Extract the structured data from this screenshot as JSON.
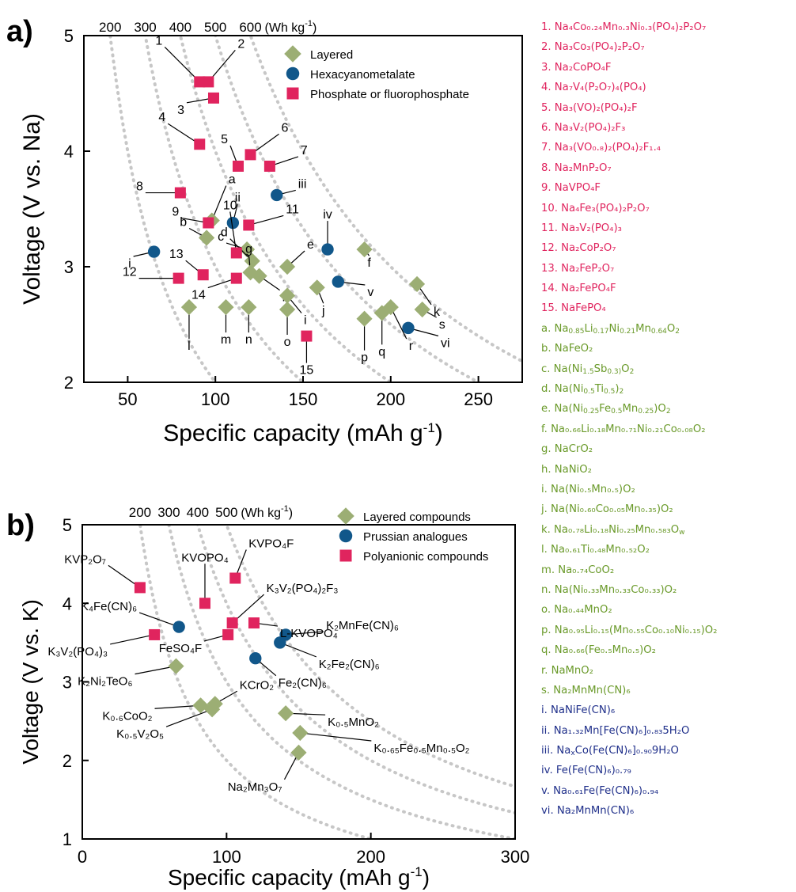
{
  "chart_data": [
    {
      "panel": "a)",
      "type": "scatter",
      "xlabel": "Specific capacity  (mAh g⁻¹)",
      "ylabel": "Voltage (V vs. Na)",
      "xlim": [
        25,
        275
      ],
      "ylim": [
        2,
        5
      ],
      "xticks": [
        "50",
        "100",
        "150",
        "200",
        "250"
      ],
      "yticks": [
        "2",
        "3",
        "4",
        "5"
      ],
      "energy_axis": {
        "labels": [
          "200",
          "300",
          "400",
          "500",
          "600"
        ],
        "unit": "(Wh kg⁻¹)",
        "values": [
          200,
          300,
          400,
          500,
          600
        ]
      },
      "legend_position": "top-right",
      "series": [
        {
          "name": "Layered",
          "marker": "diamond",
          "color": "#9cae74",
          "points": [
            {
              "label": "a",
              "x": 98,
              "y": 3.4
            },
            {
              "label": "b",
              "x": 95,
              "y": 3.25
            },
            {
              "label": "c",
              "x": 118,
              "y": 3.15
            },
            {
              "label": "d",
              "x": 121,
              "y": 3.05
            },
            {
              "label": "e",
              "x": 141,
              "y": 3.0
            },
            {
              "label": "f",
              "x": 185,
              "y": 3.15
            },
            {
              "label": "g",
              "x": 120,
              "y": 2.95
            },
            {
              "label": "h",
              "x": 125,
              "y": 2.92
            },
            {
              "label": "i",
              "x": 141,
              "y": 2.75
            },
            {
              "label": "j",
              "x": 158,
              "y": 2.82
            },
            {
              "label": "k",
              "x": 215,
              "y": 2.85
            },
            {
              "label": "l",
              "x": 85,
              "y": 2.65
            },
            {
              "label": "m",
              "x": 106,
              "y": 2.65
            },
            {
              "label": "n",
              "x": 119,
              "y": 2.65
            },
            {
              "label": "o",
              "x": 141,
              "y": 2.63
            },
            {
              "label": "p",
              "x": 185,
              "y": 2.55
            },
            {
              "label": "q",
              "x": 195,
              "y": 2.6
            },
            {
              "label": "r",
              "x": 200,
              "y": 2.65
            },
            {
              "label": "s",
              "x": 218,
              "y": 2.63
            }
          ]
        },
        {
          "name": "Hexacyanometalate",
          "marker": "circle",
          "color": "#11578a",
          "points": [
            {
              "label": "i",
              "x": 65,
              "y": 3.13
            },
            {
              "label": "ii",
              "x": 110,
              "y": 3.38
            },
            {
              "label": "iii",
              "x": 135,
              "y": 3.62
            },
            {
              "label": "iv",
              "x": 164,
              "y": 3.15
            },
            {
              "label": "v",
              "x": 170,
              "y": 2.87
            },
            {
              "label": "vi",
              "x": 210,
              "y": 2.47
            }
          ]
        },
        {
          "name": "Phosphate or fluorophosphate",
          "marker": "square",
          "color": "#e0245e",
          "points": [
            {
              "label": "1",
              "x": 91,
              "y": 4.6
            },
            {
              "label": "2",
              "x": 96,
              "y": 4.6
            },
            {
              "label": "3",
              "x": 99,
              "y": 4.46
            },
            {
              "label": "4",
              "x": 91,
              "y": 4.06
            },
            {
              "label": "5",
              "x": 113,
              "y": 3.87
            },
            {
              "label": "6",
              "x": 120,
              "y": 3.97
            },
            {
              "label": "7",
              "x": 131,
              "y": 3.87
            },
            {
              "label": "8",
              "x": 80,
              "y": 3.64
            },
            {
              "label": "9",
              "x": 96,
              "y": 3.38
            },
            {
              "label": "10",
              "x": 112,
              "y": 3.12
            },
            {
              "label": "11",
              "x": 119,
              "y": 3.36
            },
            {
              "label": "12",
              "x": 79,
              "y": 2.9
            },
            {
              "label": "13",
              "x": 93,
              "y": 2.93
            },
            {
              "label": "14",
              "x": 112,
              "y": 2.9
            },
            {
              "label": "15",
              "x": 152,
              "y": 2.4
            }
          ]
        }
      ]
    },
    {
      "panel": "b)",
      "type": "scatter",
      "xlabel": "Specific capacity (mAh g⁻¹)",
      "ylabel": "Voltage (V vs. K)",
      "xlim": [
        0,
        300
      ],
      "ylim": [
        1,
        5
      ],
      "xticks": [
        "0",
        "100",
        "200",
        "300"
      ],
      "yticks": [
        "1",
        "2",
        "3",
        "4",
        "5"
      ],
      "energy_axis": {
        "labels": [
          "200",
          "300",
          "400",
          "500"
        ],
        "unit": "(Wh kg⁻¹)",
        "values": [
          200,
          300,
          400,
          500
        ]
      },
      "legend_position": "top-right",
      "series": [
        {
          "name": "Layered compounds",
          "marker": "diamond",
          "color": "#9cae74",
          "points": [
            {
              "label": "K₂Ni₂TeO₆",
              "x": 65,
              "y": 3.2
            },
            {
              "label": "K₀.₆CoO₂",
              "x": 82,
              "y": 2.7
            },
            {
              "label": "K₀.₅V₂O₅",
              "x": 90,
              "y": 2.65
            },
            {
              "label": "KCrO₂",
              "x": 92,
              "y": 2.72
            },
            {
              "label": "K₀.₅MnO₂",
              "x": 141,
              "y": 2.6
            },
            {
              "label": "K₀.₆₅Fe₀.₅Mn₀.₅O₂",
              "x": 151,
              "y": 2.35
            },
            {
              "label": "Na₂Mn₃O₇",
              "x": 150,
              "y": 2.1
            }
          ]
        },
        {
          "name": "Prussian analogues",
          "marker": "circle",
          "color": "#11578a",
          "points": [
            {
              "label": "K₄Fe(CN)₆",
              "x": 67,
              "y": 3.7
            },
            {
              "label": "K₂MnFe(CN)₆",
              "x": 141,
              "y": 3.6
            },
            {
              "label": "K₂Fe₂(CN)₆",
              "x": 137,
              "y": 3.5
            },
            {
              "label": "Fe₂(CN)₆",
              "x": 120,
              "y": 3.3
            }
          ]
        },
        {
          "name": "Polyanionic compounds",
          "marker": "square",
          "color": "#e0245e",
          "points": [
            {
              "label": "KVP₂O₇",
              "x": 40,
              "y": 4.2
            },
            {
              "label": "KVOPO₄",
              "x": 85,
              "y": 4.0
            },
            {
              "label": "KVPO₄F",
              "x": 106,
              "y": 4.32
            },
            {
              "label": "K₃V₂(PO₄)₂F₃",
              "x": 104,
              "y": 3.75
            },
            {
              "label": "L-KVOPO₄",
              "x": 119,
              "y": 3.75
            },
            {
              "label": "FeSO₄F",
              "x": 101,
              "y": 3.6
            },
            {
              "label": "K₃V₂(PO₄)₃",
              "x": 50,
              "y": 3.6
            }
          ]
        }
      ]
    }
  ],
  "legend_a": [
    "Layered",
    "Hexacyanometalate",
    "Phosphate or fluorophosphate"
  ],
  "legend_b": [
    "Layered compounds",
    "Prussian analogues",
    "Polyanionic compounds"
  ],
  "panel_labels": {
    "a": "a)",
    "b": "b)"
  },
  "side_list": [
    {
      "color": "#e0245e",
      "text": "1. Na₄Co₀.₂₄Mn₀.₃Ni₀.₃(PO₄)₂P₂O₇"
    },
    {
      "color": "#e0245e",
      "text": "2. Na₃Co₃(PO₄)₂P₂O₇"
    },
    {
      "color": "#e0245e",
      "text": "3. Na₂CoPO₄F"
    },
    {
      "color": "#e0245e",
      "text": "4. Na₇V₄(P₂O₇)₄(PO₄)"
    },
    {
      "color": "#e0245e",
      "text": "5. Na₃(VO)₂(PO₄)₂F"
    },
    {
      "color": "#e0245e",
      "text": "6. Na₃V₂(PO₄)₂F₃"
    },
    {
      "color": "#e0245e",
      "text": "7. Na₃(VO₀.₈)₂(PO₄)₂F₁.₄"
    },
    {
      "color": "#e0245e",
      "text": "8. Na₂MnP₂O₇"
    },
    {
      "color": "#e0245e",
      "text": "9. NaVPO₄F"
    },
    {
      "color": "#e0245e",
      "text": "10. Na₄Fe₃(PO₄)₂P₂O₇"
    },
    {
      "color": "#e0245e",
      "text": "11. Na₃V₂(PO₄)₃"
    },
    {
      "color": "#e0245e",
      "text": "12. Na₂CoP₂O₇"
    },
    {
      "color": "#e0245e",
      "text": "13. Na₂FeP₂O₇"
    },
    {
      "color": "#e0245e",
      "text": "14. Na₂FePO₄F"
    },
    {
      "color": "#e0245e",
      "text": "15. NaFePO₄"
    },
    {
      "color": "#6a9a2a",
      "text": "a. Na0.85Li0.17Ni0.21Mn0.64O2",
      "html": "a. Na<sub>0.85</sub>Li<sub>0.17</sub>Ni<sub>0.21</sub>Mn<sub>0.64</sub>O<sub>2</sub>"
    },
    {
      "color": "#6a9a2a",
      "text": "b. NaFeO₂"
    },
    {
      "color": "#6a9a2a",
      "text": "c. Na(Ni1.5Sb0.3)O2",
      "html": "c. Na(Ni<sub>1.5</sub>Sb<sub>0.3)</sub>O<sub>2</sub>"
    },
    {
      "color": "#6a9a2a",
      "text": "d. Na(Ni0.5Ti0.5)2",
      "html": "d. Na(Ni<sub>0.5</sub>Ti<sub>0.5</sub>)<sub>2</sub>"
    },
    {
      "color": "#6a9a2a",
      "text": "e. Na(Ni0.25Fe0.5Mn0.25)O2",
      "html": "e. Na(Ni<sub>0.25</sub>Fe<sub>0.5</sub>Mn<sub>0.25</sub>)O<sub>2</sub>"
    },
    {
      "color": "#6a9a2a",
      "text": "f.  Na₀.₆₆Li₀.₁₈Mn₀.₇₁Ni₀.₂₁Co₀.₀₈O₂"
    },
    {
      "color": "#6a9a2a",
      "text": "g. NaCrO₂"
    },
    {
      "color": "#6a9a2a",
      "text": "h. NaNiO₂"
    },
    {
      "color": "#6a9a2a",
      "text": "i. Na(Ni₀.₅Mn₀.₅)O₂"
    },
    {
      "color": "#6a9a2a",
      "text": "j. Na(Ni₀.₆₀Co₀.₀₅Mn₀.₃₅)O₂"
    },
    {
      "color": "#6a9a2a",
      "text": "k. Na₀.₇₈Li₀.₁₈Ni₀.₂₅Mn₀.₅₈₃Ow",
      "html": "k. Na₀.₇₈Li₀.₁₈Ni₀.₂₅Mn₀.₅₈₃O<sub>w</sub>"
    },
    {
      "color": "#6a9a2a",
      "text": "l. Na₀.₆₁Ti₀.₄₈Mn₀.₅₂O₂"
    },
    {
      "color": "#6a9a2a",
      "text": "m. Na₀.₇₄CoO₂"
    },
    {
      "color": "#6a9a2a",
      "text": "n. Na(Ni₀.₃₃Mn₀.₃₃Co₀.₃₃)O₂"
    },
    {
      "color": "#6a9a2a",
      "text": "o. Na₀.₄₄MnO₂"
    },
    {
      "color": "#6a9a2a",
      "text": "p. Na₀.₉₅Li₀.₁₅(Mn₀.₅₅Co₀.₁₀Ni₀.₁₅)O₂"
    },
    {
      "color": "#6a9a2a",
      "text": "q. Na₀.₆₆(Fe₀.₅Mn₀.₅)O₂"
    },
    {
      "color": "#6a9a2a",
      "text": "r.  NaMnO₂"
    },
    {
      "color": "#6a9a2a",
      "text": "s. Na₂MnMn(CN)₆"
    },
    {
      "color": "#1f2f8a",
      "text": "i. NaNiFe(CN)₆"
    },
    {
      "color": "#1f2f8a",
      "text": "ii. Na₁.₃₂Mn[Fe(CN)₆]₀.₈₃5H₂O"
    },
    {
      "color": "#1f2f8a",
      "text": "iii. NaxCo(Fe(CN)₆]₀.₉₀9H₂O",
      "html": "iii. Na<sub>x</sub>Co(Fe(CN)₆]₀.₉₀9H₂O"
    },
    {
      "color": "#1f2f8a",
      "text": "iv. Fe(Fe(CN)₆)₀.₇₉"
    },
    {
      "color": "#1f2f8a",
      "text": "v. Na₀.₆₁Fe(Fe(CN)₆)₀.₉₄"
    },
    {
      "color": "#1f2f8a",
      "text": "vi. Na₂MnMn(CN)₆"
    }
  ]
}
